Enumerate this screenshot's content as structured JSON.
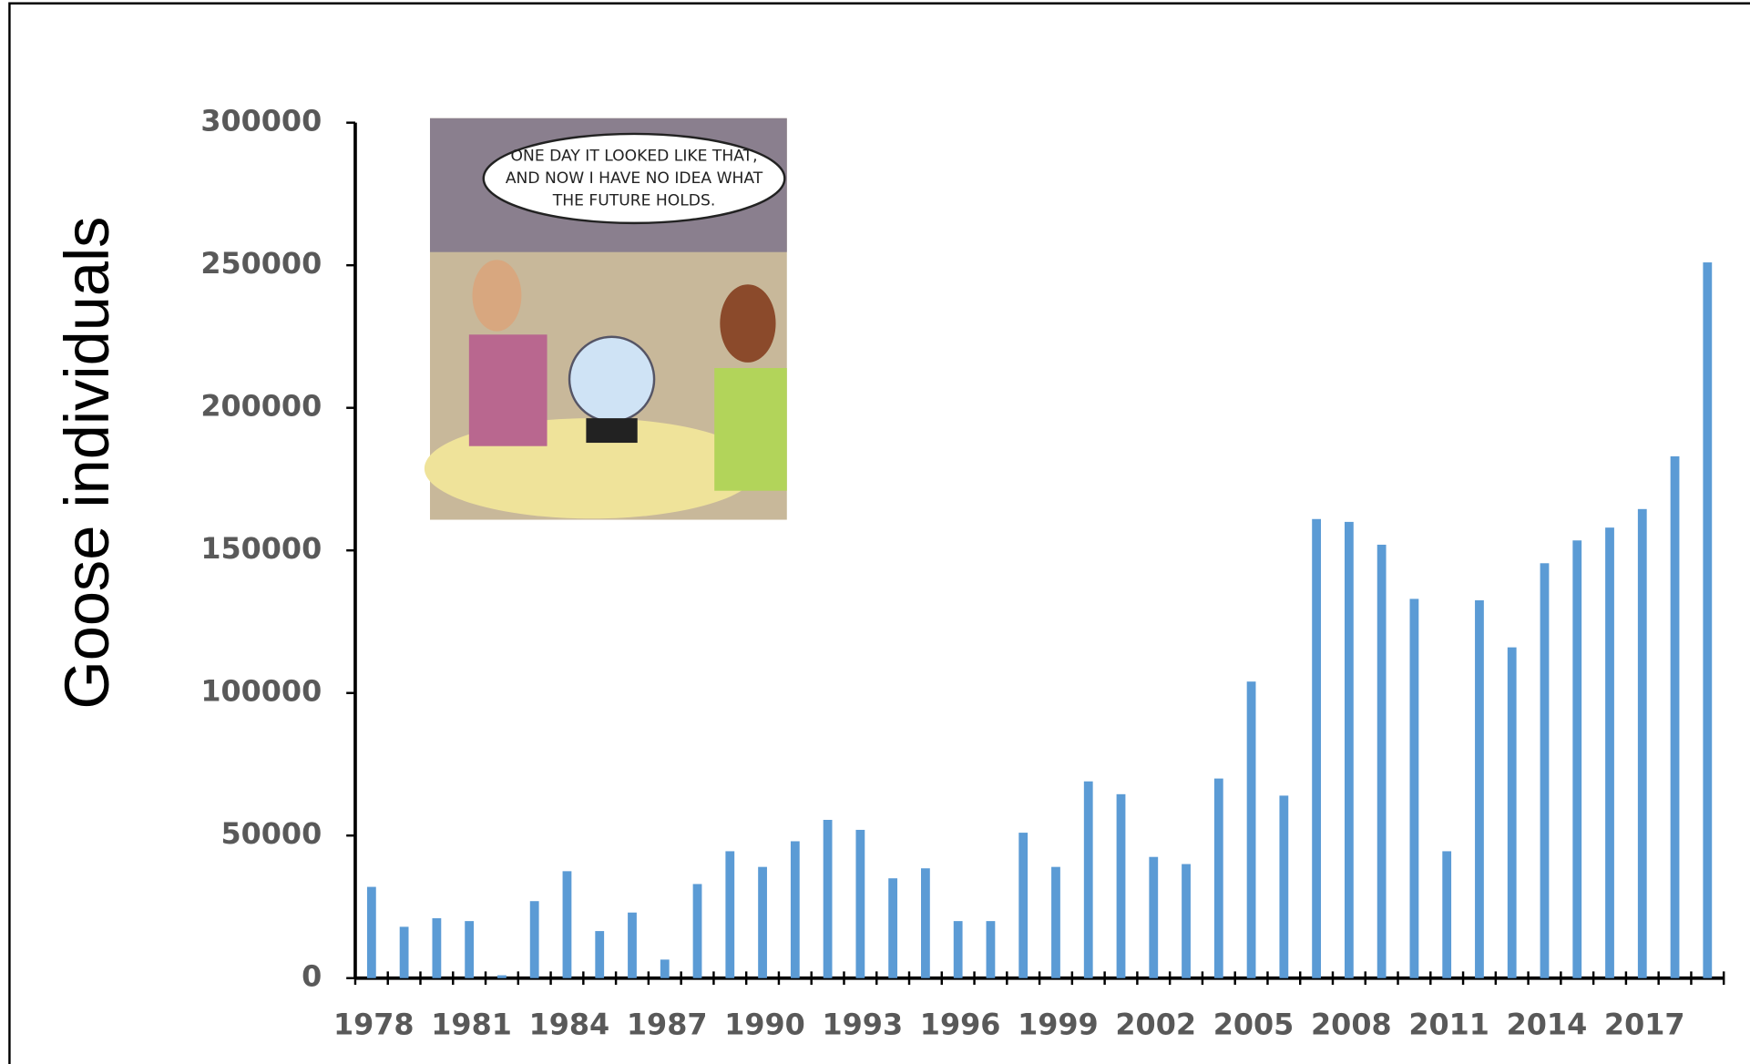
{
  "chart_data": {
    "type": "bar",
    "y_label": "Goose individuals",
    "annotation": [
      "ONE DAY IT LOOKED LIKE THAT,",
      "AND NOW I HAVE NO IDEA WHAT",
      "THE FUTURE HOLDS."
    ],
    "categories": [
      "1978",
      null,
      null,
      "1981",
      null,
      null,
      "1984",
      null,
      null,
      "1987",
      null,
      null,
      "1990",
      null,
      null,
      "1993",
      null,
      null,
      "1996",
      null,
      null,
      "1999",
      null,
      null,
      "2002",
      null,
      null,
      "2005",
      null,
      null,
      "2008",
      null,
      null,
      "2011",
      null,
      null,
      "2014",
      null,
      null,
      "2017",
      null,
      null
    ],
    "values": [
      32000,
      18000,
      21000,
      20000,
      1000,
      27000,
      37500,
      16500,
      23000,
      6500,
      33000,
      44500,
      39000,
      48000,
      55500,
      52000,
      35000,
      38500,
      20000,
      20000,
      51000,
      39000,
      69000,
      64500,
      42500,
      40000,
      70000,
      104000,
      64000,
      161000,
      160000,
      152000,
      133000,
      44500,
      132500,
      116000,
      145500,
      153500,
      158000,
      164500,
      183000,
      251000
    ],
    "color": "#5b9bd5",
    "ylim": [
      0,
      300000
    ],
    "yticks": [
      0,
      50000,
      100000,
      150000,
      200000,
      250000,
      300000
    ],
    "grid": false
  }
}
